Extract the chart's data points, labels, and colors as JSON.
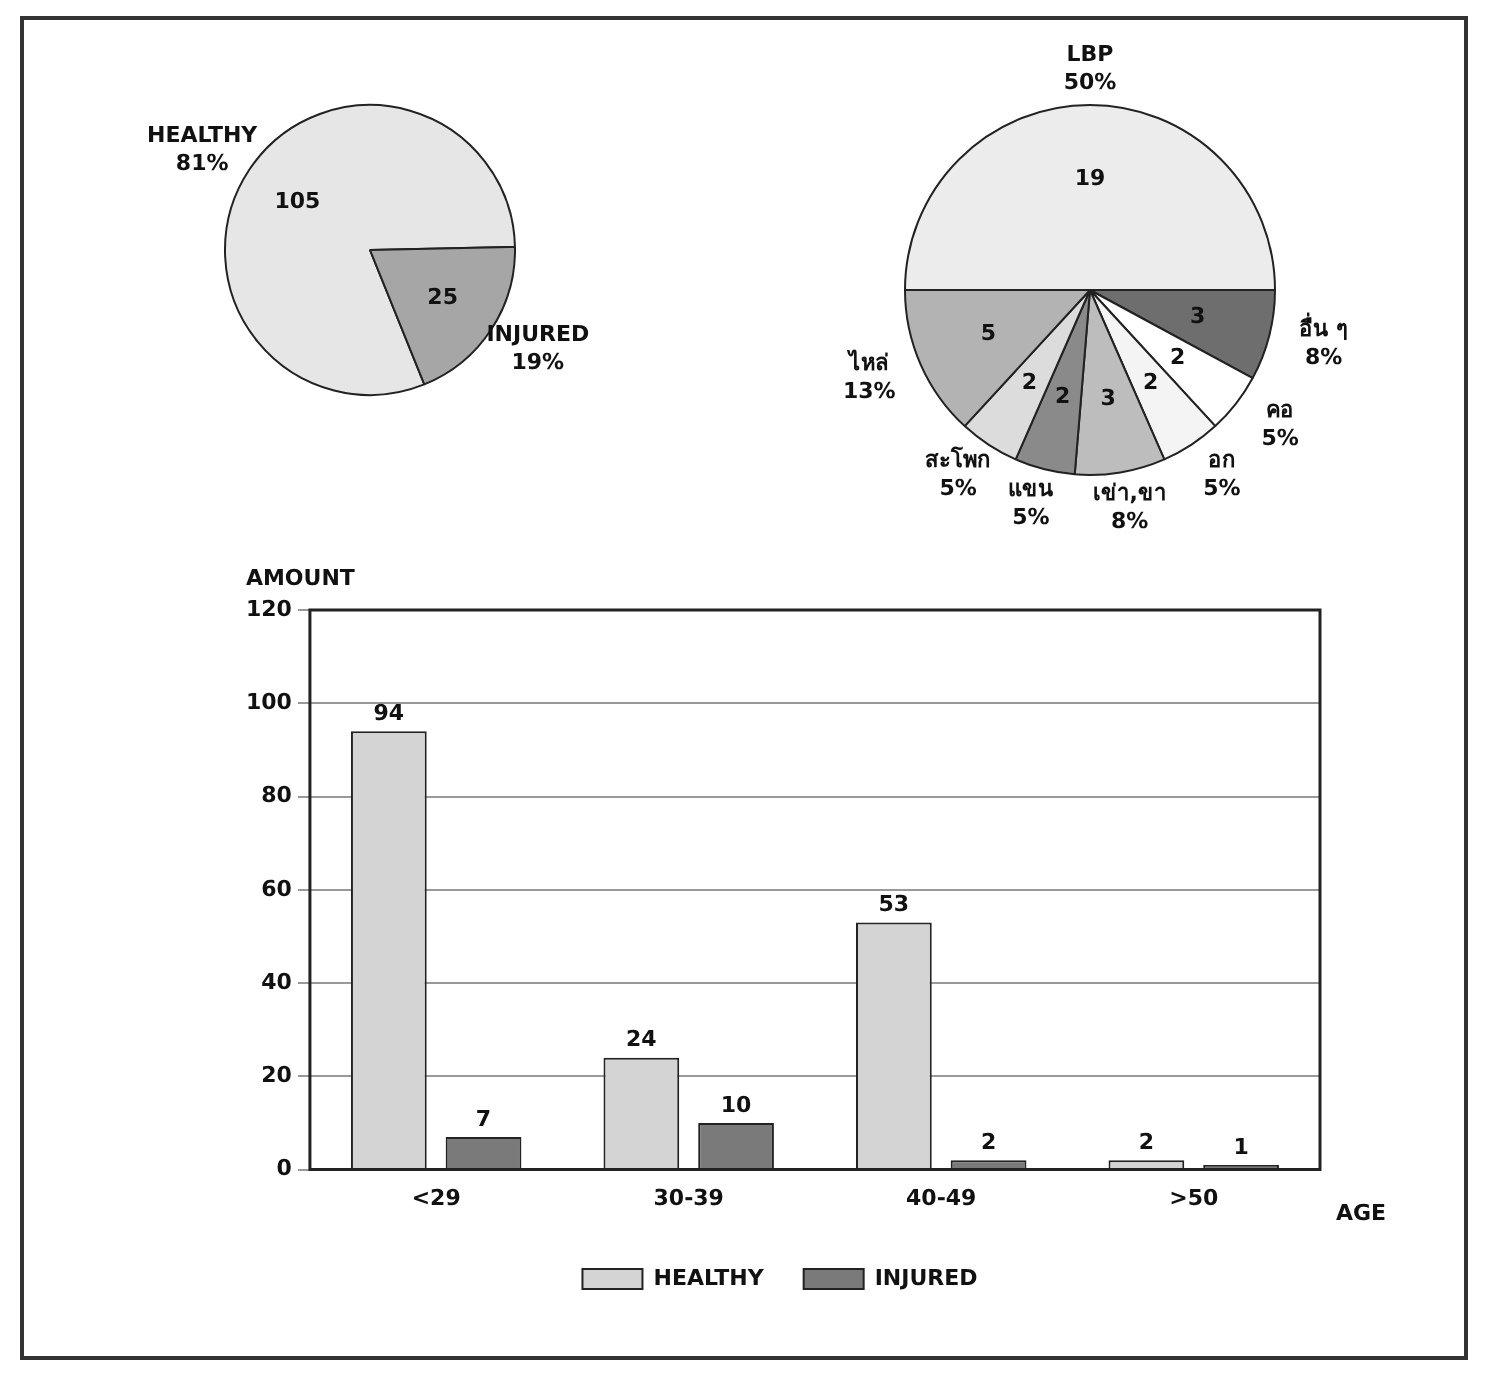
{
  "chart_data": [
    {
      "type": "pie",
      "categories": [
        "HEALTHY",
        "INJURED"
      ],
      "values": [
        105,
        25
      ],
      "colors": [
        "#e6e6e6",
        "#a6a6a6"
      ],
      "value_labels": [
        "105",
        "25"
      ],
      "annotations": [
        {
          "text": "81%",
          "x": "HEALTHY"
        },
        {
          "text": "19%",
          "x": "INJURED"
        }
      ]
    },
    {
      "type": "pie",
      "categories": [
        "LBP",
        "อื่น ๆ",
        "คอ",
        "อก",
        "เข่า,ขา",
        "แขน",
        "สะโพก",
        "ไหล่"
      ],
      "values": [
        19,
        3,
        2,
        2,
        3,
        2,
        2,
        5
      ],
      "colors": [
        "#ececec",
        "#6e6e6e",
        "#ffffff",
        "#f4f4f4",
        "#bdbdbd",
        "#8a8a8a",
        "#dcdcdc",
        "#b3b3b3"
      ],
      "value_labels": [
        "19",
        "3",
        "2",
        "2",
        "3",
        "2",
        "2",
        "5"
      ],
      "annotations": [
        {
          "text": "50%",
          "x": "LBP"
        },
        {
          "text": "8%",
          "x": "อื่น ๆ"
        },
        {
          "text": "5%",
          "x": "คอ"
        },
        {
          "text": "5%",
          "x": "อก"
        },
        {
          "text": "8%",
          "x": "เข่า,ขา"
        },
        {
          "text": "5%",
          "x": "แขน"
        },
        {
          "text": "5%",
          "x": "สะโพก"
        },
        {
          "text": "13%",
          "x": "ไหล่"
        }
      ]
    },
    {
      "type": "bar",
      "xlabel": "AGE",
      "ylabel": "AMOUNT",
      "categories": [
        "<29",
        "30-39",
        "40-49",
        ">50"
      ],
      "series": [
        {
          "name": "HEALTHY",
          "color": "#d4d4d4",
          "values": [
            94,
            24,
            53,
            2
          ]
        },
        {
          "name": "INJURED",
          "color": "#7a7a7a",
          "values": [
            7,
            10,
            2,
            1
          ]
        }
      ],
      "ylim": [
        0,
        120
      ],
      "yticks": [
        0,
        20,
        40,
        60,
        80,
        100,
        120
      ],
      "grid": "y",
      "legend": "bottom",
      "data_labels": true
    }
  ]
}
